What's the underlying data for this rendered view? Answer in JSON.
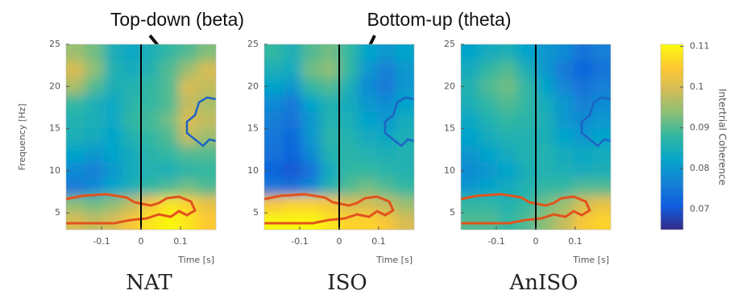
{
  "chart_data": [
    {
      "type": "heatmap",
      "title": "NAT",
      "xlabel": "Time [s]",
      "ylabel": "Frequency [Hz]",
      "xlim": [
        -0.19,
        0.19
      ],
      "ylim": [
        3,
        25
      ],
      "xticks": [
        -0.1,
        0,
        0.1
      ],
      "yticks": [
        5,
        10,
        15,
        20,
        25
      ],
      "reference_line": 0,
      "x": [
        -0.166,
        -0.119,
        -0.071,
        -0.024,
        0.024,
        0.071,
        0.119,
        0.166
      ],
      "y": [
        24,
        22,
        20,
        18,
        16,
        14,
        12,
        10,
        8,
        6,
        4
      ],
      "values": [
        [
          0.095,
          0.092,
          0.085,
          0.083,
          0.085,
          0.088,
          0.09,
          0.093
        ],
        [
          0.1,
          0.094,
          0.086,
          0.084,
          0.086,
          0.09,
          0.095,
          0.1
        ],
        [
          0.096,
          0.09,
          0.085,
          0.086,
          0.088,
          0.09,
          0.1,
          0.098
        ],
        [
          0.088,
          0.085,
          0.083,
          0.087,
          0.088,
          0.09,
          0.098,
          0.096
        ],
        [
          0.086,
          0.085,
          0.083,
          0.088,
          0.089,
          0.092,
          0.1,
          0.098
        ],
        [
          0.085,
          0.084,
          0.082,
          0.086,
          0.088,
          0.09,
          0.098,
          0.095
        ],
        [
          0.082,
          0.08,
          0.082,
          0.084,
          0.087,
          0.088,
          0.09,
          0.09
        ],
        [
          0.078,
          0.076,
          0.08,
          0.084,
          0.086,
          0.085,
          0.087,
          0.088
        ],
        [
          0.075,
          0.078,
          0.082,
          0.085,
          0.088,
          0.09,
          0.092,
          0.09
        ],
        [
          0.094,
          0.092,
          0.094,
          0.098,
          0.104,
          0.108,
          0.106,
          0.102
        ],
        [
          0.1,
          0.098,
          0.1,
          0.104,
          0.108,
          0.11,
          0.108,
          0.105
        ]
      ]
    },
    {
      "type": "heatmap",
      "title": "ISO",
      "xlabel": "Time [s]",
      "xlim": [
        -0.19,
        0.19
      ],
      "ylim": [
        3,
        25
      ],
      "xticks": [
        -0.1,
        0,
        0.1
      ],
      "yticks": [
        5,
        10,
        15,
        20,
        25
      ],
      "reference_line": 0,
      "x": [
        -0.166,
        -0.119,
        -0.071,
        -0.024,
        0.024,
        0.071,
        0.119,
        0.166
      ],
      "y": [
        24,
        22,
        20,
        18,
        16,
        14,
        12,
        10,
        8,
        6,
        4
      ],
      "values": [
        [
          0.088,
          0.085,
          0.09,
          0.092,
          0.088,
          0.082,
          0.08,
          0.082
        ],
        [
          0.085,
          0.084,
          0.092,
          0.094,
          0.088,
          0.08,
          0.076,
          0.08
        ],
        [
          0.082,
          0.08,
          0.088,
          0.09,
          0.085,
          0.078,
          0.075,
          0.08
        ],
        [
          0.078,
          0.075,
          0.082,
          0.086,
          0.084,
          0.08,
          0.078,
          0.082
        ],
        [
          0.076,
          0.074,
          0.08,
          0.086,
          0.085,
          0.082,
          0.08,
          0.084
        ],
        [
          0.075,
          0.073,
          0.08,
          0.087,
          0.086,
          0.084,
          0.083,
          0.085
        ],
        [
          0.074,
          0.072,
          0.078,
          0.086,
          0.087,
          0.086,
          0.085,
          0.086
        ],
        [
          0.072,
          0.07,
          0.074,
          0.084,
          0.088,
          0.088,
          0.087,
          0.086
        ],
        [
          0.075,
          0.074,
          0.078,
          0.086,
          0.09,
          0.092,
          0.09,
          0.088
        ],
        [
          0.104,
          0.106,
          0.106,
          0.104,
          0.1,
          0.1,
          0.098,
          0.095
        ],
        [
          0.11,
          0.11,
          0.11,
          0.108,
          0.106,
          0.106,
          0.104,
          0.1
        ]
      ]
    },
    {
      "type": "heatmap",
      "title": "AnISO",
      "xlabel": "Time [s]",
      "xlim": [
        -0.19,
        0.19
      ],
      "ylim": [
        3,
        25
      ],
      "xticks": [
        -0.1,
        0,
        0.1
      ],
      "yticks": [
        5,
        10,
        15,
        20,
        25
      ],
      "reference_line": 0,
      "x": [
        -0.166,
        -0.119,
        -0.071,
        -0.024,
        0.024,
        0.071,
        0.119,
        0.166
      ],
      "y": [
        24,
        22,
        20,
        18,
        16,
        14,
        12,
        10,
        8,
        6,
        4
      ],
      "values": [
        [
          0.082,
          0.084,
          0.085,
          0.082,
          0.08,
          0.078,
          0.074,
          0.076
        ],
        [
          0.084,
          0.088,
          0.09,
          0.085,
          0.08,
          0.075,
          0.072,
          0.074
        ],
        [
          0.086,
          0.09,
          0.092,
          0.088,
          0.082,
          0.077,
          0.074,
          0.076
        ],
        [
          0.085,
          0.088,
          0.09,
          0.088,
          0.084,
          0.08,
          0.076,
          0.078
        ],
        [
          0.083,
          0.086,
          0.088,
          0.087,
          0.085,
          0.08,
          0.078,
          0.08
        ],
        [
          0.082,
          0.084,
          0.086,
          0.086,
          0.085,
          0.082,
          0.08,
          0.082
        ],
        [
          0.08,
          0.082,
          0.084,
          0.086,
          0.086,
          0.084,
          0.083,
          0.084
        ],
        [
          0.078,
          0.08,
          0.082,
          0.085,
          0.086,
          0.085,
          0.084,
          0.085
        ],
        [
          0.08,
          0.082,
          0.084,
          0.086,
          0.088,
          0.088,
          0.09,
          0.09
        ],
        [
          0.088,
          0.088,
          0.086,
          0.088,
          0.092,
          0.095,
          0.1,
          0.102
        ],
        [
          0.09,
          0.09,
          0.088,
          0.09,
          0.094,
          0.098,
          0.104,
          0.106
        ]
      ]
    }
  ],
  "colorbar": {
    "label": "Intertrial Coherence",
    "lim": [
      0.065,
      0.1105
    ],
    "ticks": [
      0.07,
      0.08,
      0.09,
      0.1,
      0.11
    ],
    "colors": [
      "#352a87",
      "#0f5cdd",
      "#1481d6",
      "#06a4ca",
      "#2eb7a4",
      "#87bf77",
      "#d1bb59",
      "#fec832",
      "#f9fb0e"
    ]
  },
  "annotations": [
    "Top-down (beta)",
    "Bottom-up (theta)"
  ]
}
